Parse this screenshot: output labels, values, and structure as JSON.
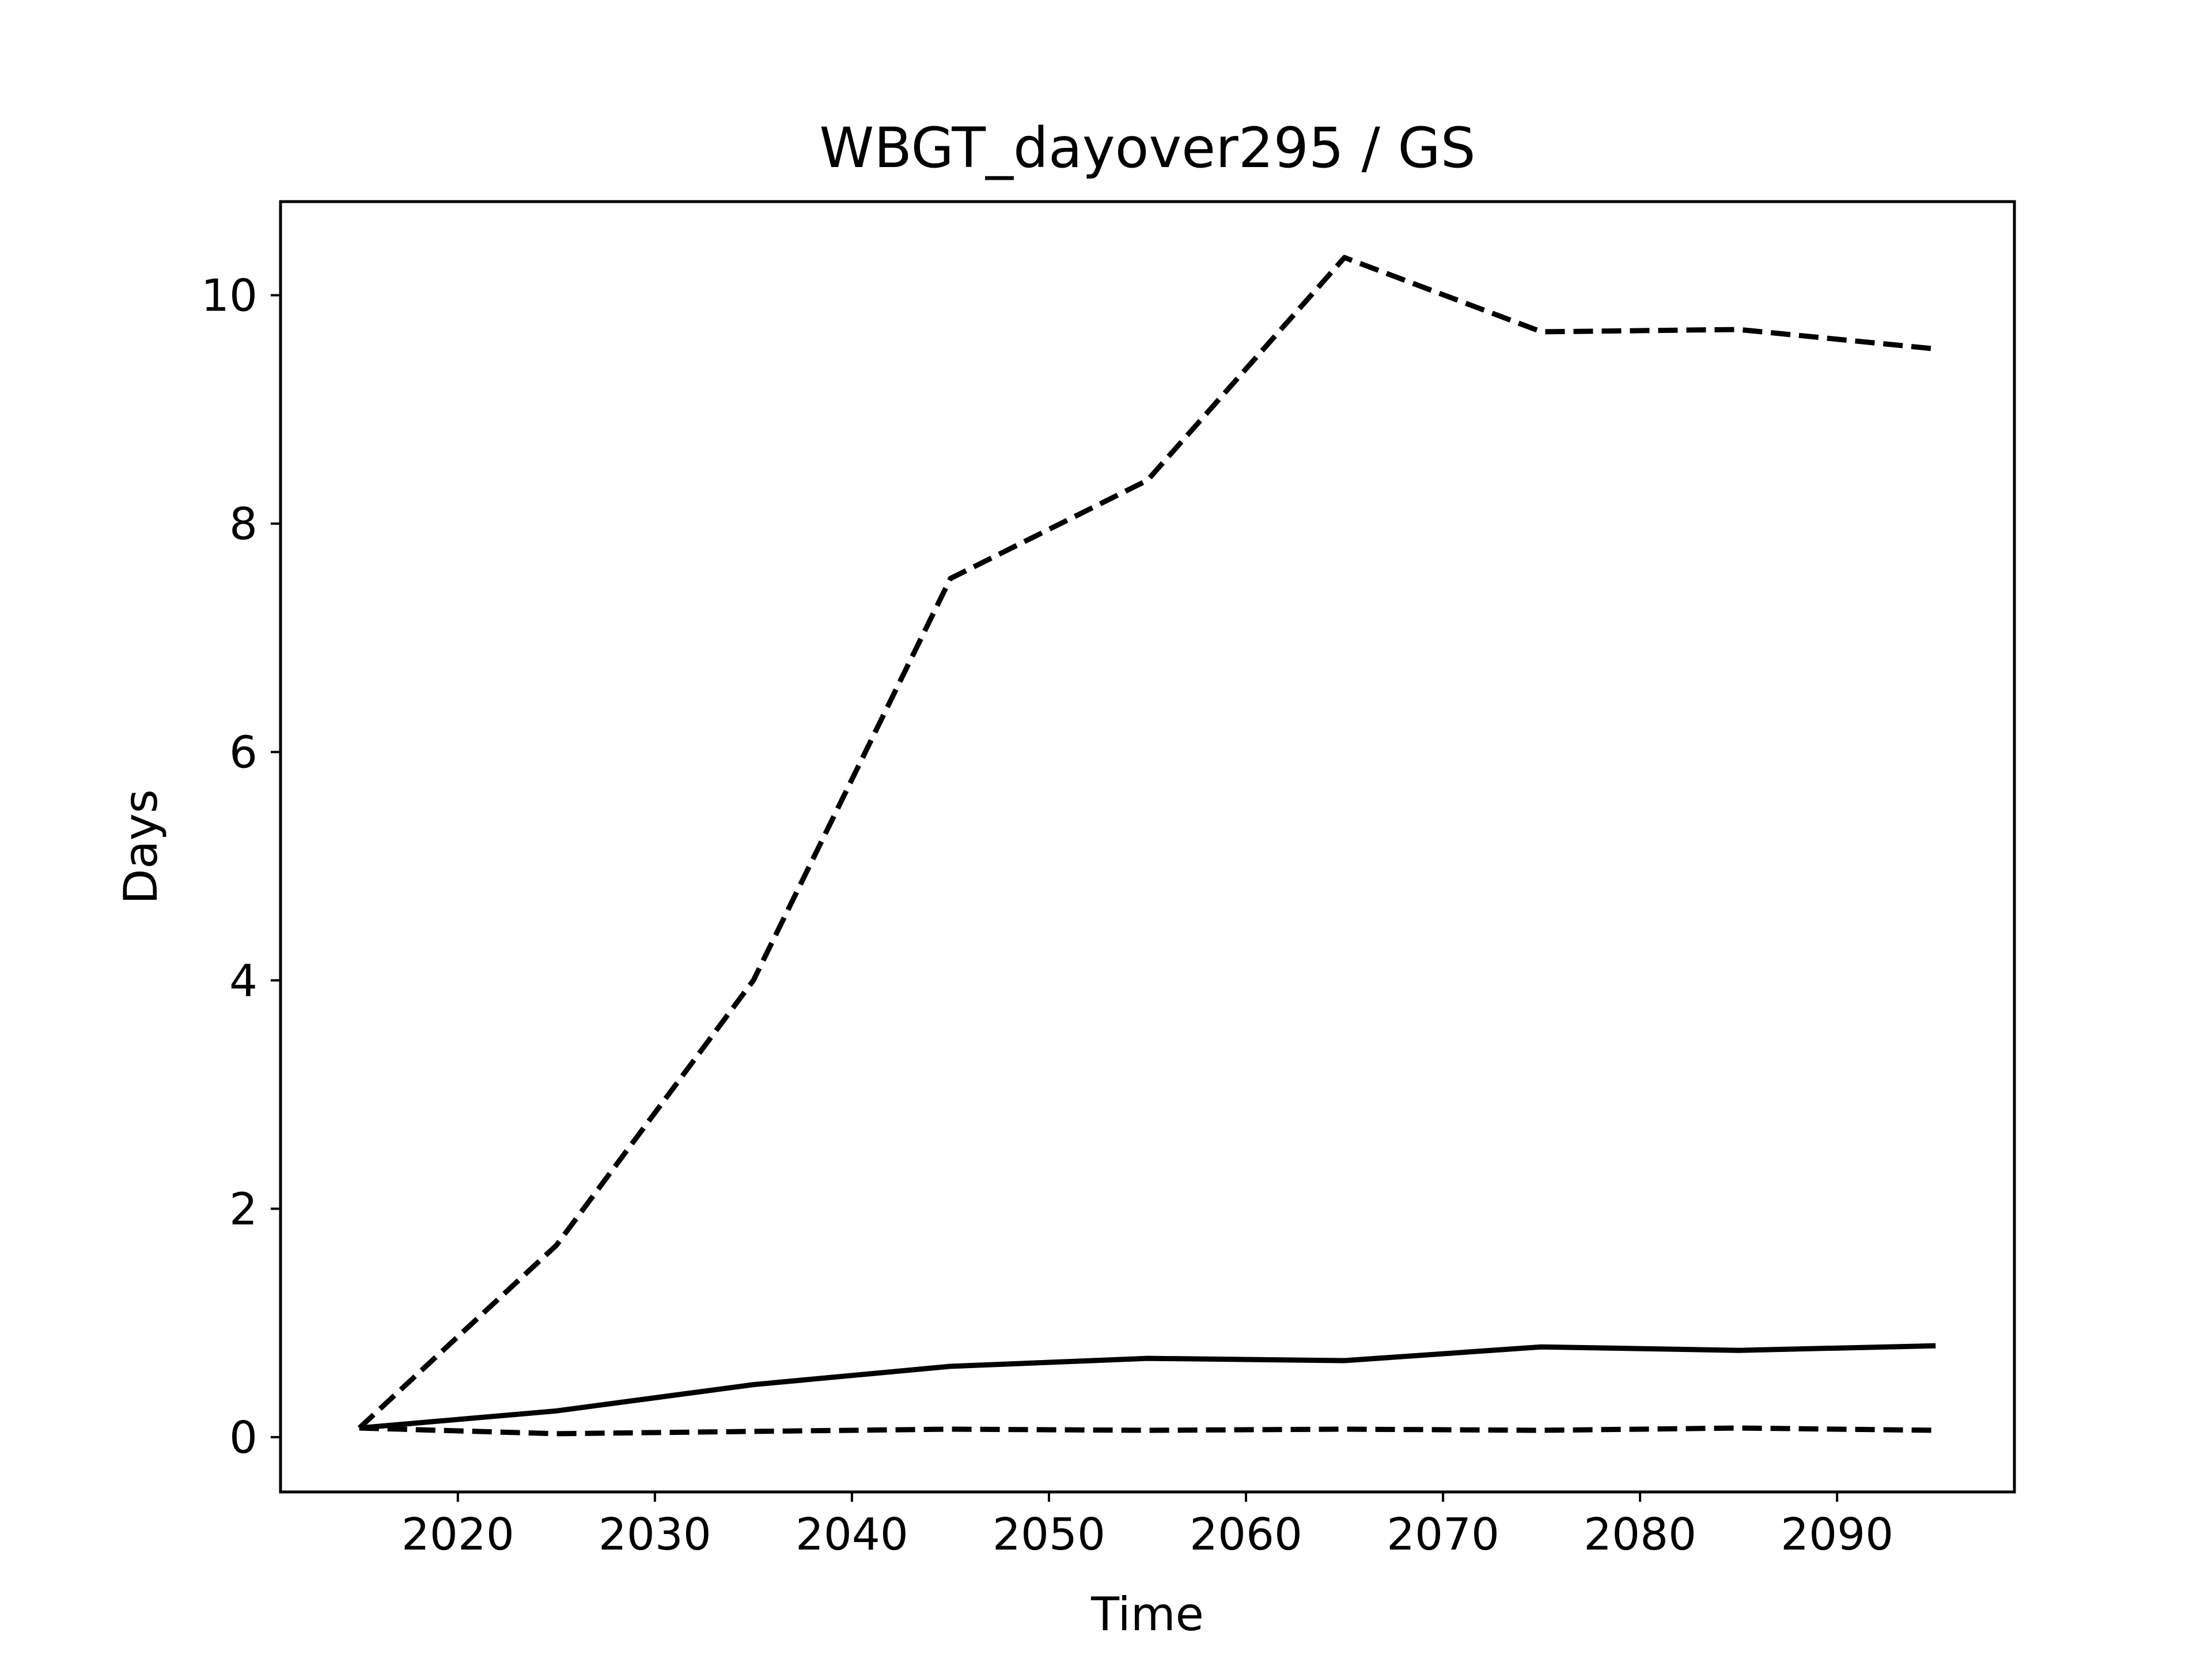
{
  "chart_data": {
    "type": "line",
    "title": "WBGT_dayover295 / GS",
    "xlabel": "Time",
    "ylabel": "Days",
    "xlim": [
      2011,
      2099
    ],
    "ylim": [
      -0.48,
      10.82
    ],
    "xticks": [
      2020,
      2030,
      2040,
      2050,
      2060,
      2070,
      2080,
      2090
    ],
    "yticks": [
      0,
      2,
      4,
      6,
      8,
      10
    ],
    "grid": false,
    "legend": false,
    "line_color": "#000000",
    "x": [
      2015,
      2025,
      2035,
      2045,
      2055,
      2065,
      2075,
      2085,
      2095
    ],
    "series": [
      {
        "style": "dashed",
        "values": [
          0.08,
          1.68,
          4.0,
          7.52,
          8.38,
          10.33,
          9.68,
          9.7,
          9.53
        ]
      },
      {
        "style": "solid",
        "values": [
          0.08,
          0.23,
          0.46,
          0.62,
          0.69,
          0.67,
          0.79,
          0.76,
          0.8
        ]
      },
      {
        "style": "dashed",
        "values": [
          0.08,
          0.03,
          0.05,
          0.07,
          0.06,
          0.07,
          0.06,
          0.08,
          0.06
        ]
      }
    ]
  }
}
